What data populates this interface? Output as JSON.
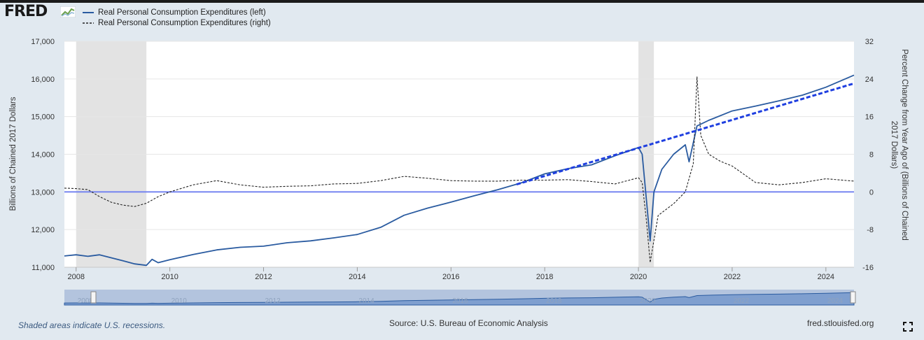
{
  "header": {
    "logo_text": "FRED"
  },
  "footer": {
    "note": "Shaded areas indicate U.S. recessions.",
    "source": "Source: U.S. Bureau of Economic Analysis",
    "site": "fred.stlouisfed.org"
  },
  "colors": {
    "left_series": "#2a5ba0",
    "right_series": "#222222",
    "trend": "#1f3fe0",
    "reference": "#6f7ff0",
    "recession": "#e3e3e3",
    "navigator": "#b3c4de"
  },
  "icons": [
    "fred-chart-icon",
    "fullscreen-icon"
  ],
  "chart_data": {
    "type": "line",
    "legend": [
      "Real Personal Consumption Expenditures (left)",
      "Real Personal Consumption Expenditures (right)"
    ],
    "xlabel": "",
    "ylabel": "Billions of Chained 2017 Dollars",
    "ylabel_right": "Percent Change from Year Ago of (Billions of Chained 2017 Dollars)",
    "x_ticks": [
      "2008",
      "2010",
      "2012",
      "2014",
      "2016",
      "2018",
      "2020",
      "2022",
      "2024"
    ],
    "y_ticks_left": [
      "11,000",
      "12,000",
      "13,000",
      "14,000",
      "15,000",
      "16,000",
      "17,000"
    ],
    "y_ticks_right": [
      "-16",
      "-8",
      "0",
      "8",
      "16",
      "24",
      "32"
    ],
    "xlim": [
      2007.75,
      2024.6
    ],
    "ylim_left": [
      11000,
      17000
    ],
    "ylim_right": [
      -16,
      32
    ],
    "grid": true,
    "legend_position": "top-left",
    "recessions": [
      [
        2008.0,
        2009.5
      ],
      [
        2020.0,
        2020.33
      ]
    ],
    "reference_line_right": 0,
    "trend_line": {
      "x": [
        2017.4,
        2024.6
      ],
      "y": [
        13200,
        15880
      ]
    },
    "navigator_ticks": [
      "2008",
      "2010",
      "2012",
      "2014",
      "2016",
      "2018",
      "2020",
      "2022",
      "2024"
    ],
    "series": [
      {
        "name": "Real Personal Consumption Expenditures (left)",
        "axis": "left",
        "x": [
          2007.75,
          2008.0,
          2008.25,
          2008.5,
          2008.75,
          2009.0,
          2009.25,
          2009.5,
          2009.62,
          2009.75,
          2010.0,
          2010.5,
          2011.0,
          2011.5,
          2012.0,
          2012.5,
          2013.0,
          2013.5,
          2014.0,
          2014.5,
          2015.0,
          2015.5,
          2016.0,
          2016.5,
          2017.0,
          2017.5,
          2018.0,
          2018.5,
          2019.0,
          2019.5,
          2020.0,
          2020.08,
          2020.17,
          2020.25,
          2020.33,
          2020.5,
          2020.75,
          2021.0,
          2021.08,
          2021.25,
          2021.5,
          2022.0,
          2022.5,
          2023.0,
          2023.5,
          2024.0,
          2024.6
        ],
        "values": [
          11300,
          11330,
          11290,
          11330,
          11250,
          11170,
          11090,
          11050,
          11210,
          11120,
          11200,
          11340,
          11460,
          11530,
          11560,
          11650,
          11700,
          11780,
          11870,
          12060,
          12380,
          12570,
          12730,
          12900,
          13060,
          13240,
          13480,
          13620,
          13720,
          13960,
          14180,
          14000,
          12800,
          11700,
          13000,
          13600,
          14000,
          14250,
          13800,
          14750,
          14900,
          15150,
          15280,
          15420,
          15570,
          15780,
          16100
        ]
      },
      {
        "name": "Real Personal Consumption Expenditures (right)",
        "axis": "right",
        "x": [
          2007.75,
          2008.0,
          2008.25,
          2008.5,
          2008.75,
          2009.0,
          2009.25,
          2009.5,
          2009.75,
          2010.0,
          2010.5,
          2011.0,
          2011.5,
          2012.0,
          2012.5,
          2013.0,
          2013.5,
          2014.0,
          2014.5,
          2015.0,
          2015.5,
          2016.0,
          2016.5,
          2017.0,
          2017.5,
          2018.0,
          2018.5,
          2019.0,
          2019.5,
          2020.0,
          2020.08,
          2020.17,
          2020.25,
          2020.42,
          2020.75,
          2021.0,
          2021.17,
          2021.25,
          2021.33,
          2021.5,
          2021.75,
          2022.0,
          2022.5,
          2023.0,
          2023.5,
          2024.0,
          2024.6
        ],
        "values": [
          0.8,
          0.7,
          0.5,
          -1.0,
          -2.2,
          -2.8,
          -3.1,
          -2.4,
          -1.0,
          0.0,
          1.5,
          2.4,
          1.5,
          1.0,
          1.2,
          1.3,
          1.7,
          1.8,
          2.4,
          3.3,
          2.9,
          2.4,
          2.3,
          2.3,
          2.5,
          2.5,
          2.6,
          2.2,
          1.7,
          3.0,
          2.0,
          -6.0,
          -15.0,
          -5.0,
          -2.5,
          0.0,
          6.0,
          24.5,
          12.0,
          8.0,
          6.5,
          5.5,
          2.0,
          1.5,
          2.0,
          2.8,
          2.3
        ]
      }
    ]
  }
}
